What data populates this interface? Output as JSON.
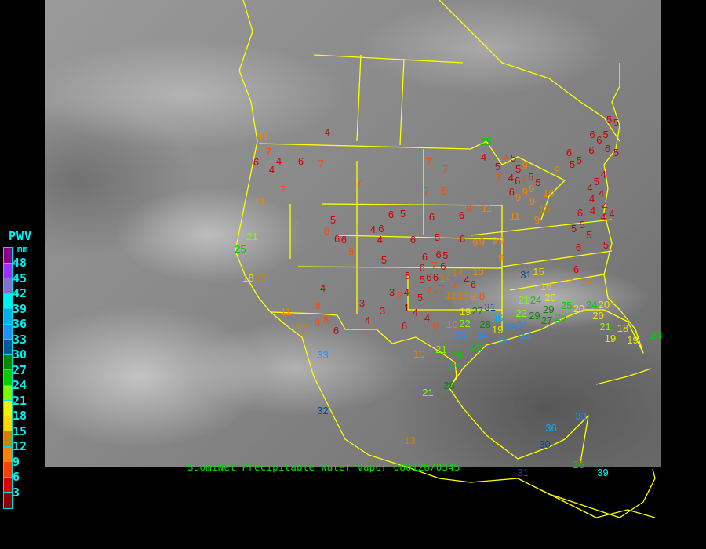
{
  "caption": "SuomiNet Precipitable Water Vapor 080126/0345",
  "legend": {
    "title": "PWV",
    "unit": "mm",
    "labels": [
      "48",
      "45",
      "42",
      "39",
      "36",
      "33",
      "30",
      "27",
      "24",
      "21",
      "18",
      "15",
      "12",
      "9",
      "6",
      "3"
    ],
    "colors": [
      "#8b008b",
      "#9b30ff",
      "#8470d0",
      "#00f0f0",
      "#00b0f0",
      "#1e90ff",
      "#005a9a",
      "#008a00",
      "#00cc00",
      "#7cfc00",
      "#f0f000",
      "#ffd700",
      "#c88600",
      "#ff8000",
      "#ff4000",
      "#d80000",
      "#8b0000"
    ]
  },
  "map": {
    "border_color": "#ffff00",
    "stations": [
      4,
      11,
      7,
      6,
      4,
      6,
      4,
      7,
      7,
      7,
      11,
      7,
      7,
      7,
      8,
      6,
      5,
      6,
      6,
      5,
      8,
      6,
      4,
      6,
      4,
      6,
      5,
      6,
      21,
      25,
      18,
      12,
      6,
      8,
      5,
      6,
      6,
      5,
      6,
      6,
      7,
      6,
      9,
      9,
      9,
      10,
      5,
      6,
      14,
      14,
      4,
      5,
      7,
      7,
      7,
      6,
      12,
      13,
      9,
      8,
      7,
      3,
      8,
      4,
      5,
      4,
      8,
      3,
      3,
      1,
      4,
      4,
      11,
      8,
      8,
      12,
      6,
      4,
      6,
      8,
      10,
      19,
      22,
      27,
      31,
      33,
      28,
      36,
      34,
      35,
      33,
      10,
      21,
      24,
      26,
      31,
      15,
      6,
      10,
      13,
      16,
      20,
      21,
      24,
      22,
      29,
      27,
      29,
      25,
      25,
      20,
      24,
      20,
      20,
      21,
      18,
      19,
      19,
      19,
      33,
      33,
      34,
      24,
      25,
      4,
      8,
      5,
      5,
      7,
      9,
      5,
      4,
      6,
      7,
      5,
      5,
      6,
      9,
      9,
      9,
      9,
      10,
      8,
      11,
      11,
      13,
      9,
      6,
      5,
      5,
      9,
      6,
      5,
      6,
      6,
      6,
      5,
      5,
      5,
      4,
      5,
      4,
      4,
      4,
      4,
      4,
      4,
      4,
      6,
      5,
      5,
      5,
      5,
      9,
      9,
      6,
      32,
      21,
      28,
      25,
      13,
      33,
      36,
      30,
      31,
      26,
      39
    ]
  }
}
